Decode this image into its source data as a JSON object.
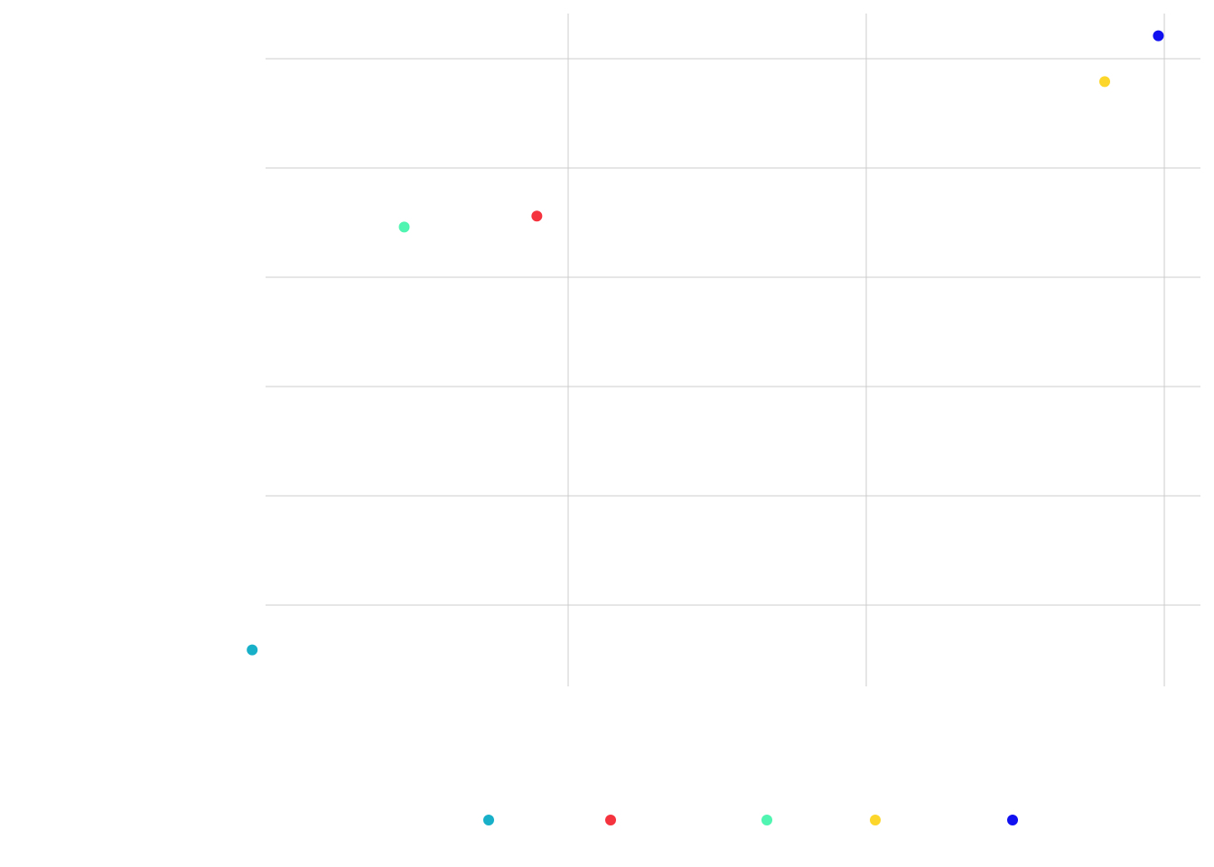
{
  "chart_data": {
    "type": "scatter",
    "title": "",
    "xlabel": "",
    "ylabel": "",
    "grid": true,
    "legend_position": "bottom",
    "xlim": [
      -12,
      22
    ],
    "ylim": [
      -1,
      5.2
    ],
    "x_gridlines": [
      0,
      10,
      20
    ],
    "y_gridlines": [
      0,
      1,
      2,
      3,
      4,
      5
    ],
    "series": [
      {
        "color": "#17b0c8",
        "points": [
          {
            "x": -10.6,
            "y": -0.41
          }
        ]
      },
      {
        "color": "#f5333f",
        "points": [
          {
            "x": -1.05,
            "y": 3.56
          }
        ]
      },
      {
        "color": "#4ff5b0",
        "points": [
          {
            "x": -5.5,
            "y": 3.46
          }
        ]
      },
      {
        "color": "#fcd62a",
        "points": [
          {
            "x": 18.0,
            "y": 4.79
          }
        ]
      },
      {
        "color": "#1010f0",
        "points": [
          {
            "x": 19.8,
            "y": 5.21
          }
        ]
      }
    ]
  }
}
